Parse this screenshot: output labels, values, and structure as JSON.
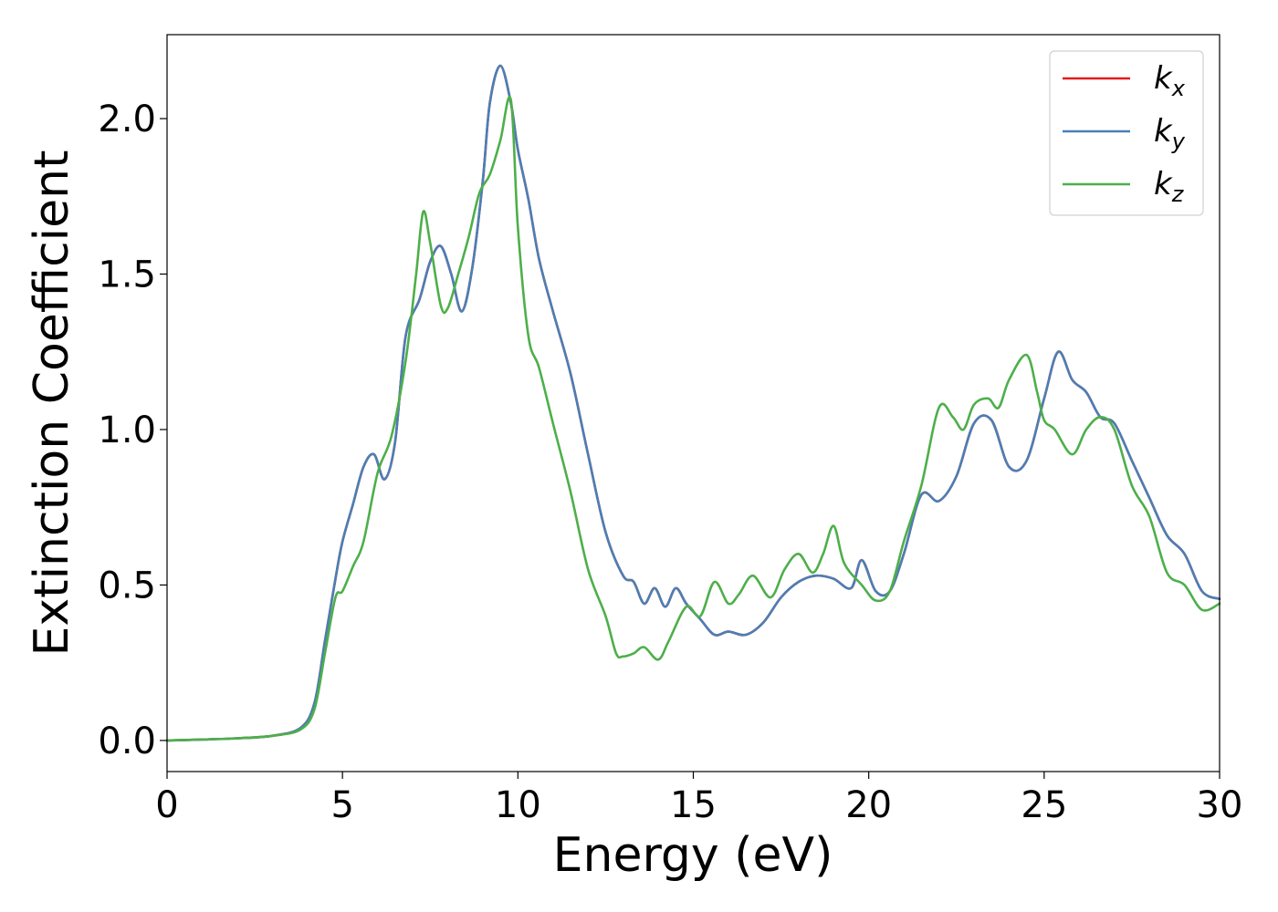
{
  "chart_data": {
    "type": "line",
    "title": "",
    "xlabel": "Energy (eV)",
    "ylabel": "Extinction Coefficient",
    "xlim": [
      0,
      30
    ],
    "ylim": [
      -0.1,
      2.27
    ],
    "xticks": [
      0,
      5,
      10,
      15,
      20,
      25,
      30
    ],
    "xtick_labels": [
      "0",
      "5",
      "10",
      "15",
      "20",
      "25",
      "30"
    ],
    "yticks": [
      0.0,
      0.5,
      1.0,
      1.5,
      2.0
    ],
    "ytick_labels": [
      "0.0",
      "0.5",
      "1.0",
      "1.5",
      "2.0"
    ],
    "grid": false,
    "legend_position": "top-right",
    "series": [
      {
        "name": "k_x",
        "legend_base": "k",
        "legend_sub": "x",
        "color": "#e41a1c",
        "x": [
          0,
          1,
          2,
          3,
          3.8,
          4.2,
          4.5,
          4.8,
          5,
          5.3,
          5.6,
          5.9,
          6.2,
          6.5,
          6.8,
          7.2,
          7.5,
          7.8,
          8.1,
          8.4,
          8.7,
          9,
          9.2,
          9.5,
          9.8,
          10,
          10.3,
          10.6,
          11,
          11.5,
          12,
          12.5,
          13,
          13.3,
          13.6,
          13.9,
          14.2,
          14.5,
          14.8,
          15.2,
          15.6,
          16,
          16.5,
          17,
          17.5,
          18,
          18.5,
          19,
          19.5,
          19.8,
          20.2,
          20.6,
          21,
          21.5,
          22,
          22.5,
          23,
          23.5,
          24,
          24.5,
          25,
          25.4,
          25.8,
          26.2,
          26.6,
          27,
          27.5,
          28,
          28.5,
          29,
          29.5,
          30
        ],
        "values": [
          0,
          0.003,
          0.007,
          0.015,
          0.04,
          0.12,
          0.32,
          0.52,
          0.64,
          0.76,
          0.88,
          0.92,
          0.84,
          0.96,
          1.3,
          1.42,
          1.54,
          1.59,
          1.5,
          1.38,
          1.52,
          1.8,
          2.05,
          2.17,
          2.05,
          1.9,
          1.74,
          1.55,
          1.38,
          1.18,
          0.92,
          0.67,
          0.53,
          0.51,
          0.44,
          0.49,
          0.43,
          0.49,
          0.44,
          0.39,
          0.34,
          0.35,
          0.34,
          0.38,
          0.46,
          0.51,
          0.53,
          0.52,
          0.49,
          0.58,
          0.48,
          0.48,
          0.6,
          0.79,
          0.77,
          0.85,
          1.02,
          1.03,
          0.88,
          0.9,
          1.1,
          1.25,
          1.16,
          1.12,
          1.04,
          1.02,
          0.9,
          0.78,
          0.66,
          0.6,
          0.48,
          0.455
        ]
      },
      {
        "name": "k_y",
        "legend_base": "k",
        "legend_sub": "y",
        "color": "#4a7fb5",
        "x": [
          0,
          1,
          2,
          3,
          3.8,
          4.2,
          4.5,
          4.8,
          5,
          5.3,
          5.6,
          5.9,
          6.2,
          6.5,
          6.8,
          7.2,
          7.5,
          7.8,
          8.1,
          8.4,
          8.7,
          9,
          9.2,
          9.5,
          9.8,
          10,
          10.3,
          10.6,
          11,
          11.5,
          12,
          12.5,
          13,
          13.3,
          13.6,
          13.9,
          14.2,
          14.5,
          14.8,
          15.2,
          15.6,
          16,
          16.5,
          17,
          17.5,
          18,
          18.5,
          19,
          19.5,
          19.8,
          20.2,
          20.6,
          21,
          21.5,
          22,
          22.5,
          23,
          23.5,
          24,
          24.5,
          25,
          25.4,
          25.8,
          26.2,
          26.6,
          27,
          27.5,
          28,
          28.5,
          29,
          29.5,
          30
        ],
        "values": [
          0,
          0.003,
          0.007,
          0.015,
          0.04,
          0.12,
          0.32,
          0.52,
          0.64,
          0.76,
          0.88,
          0.92,
          0.84,
          0.96,
          1.3,
          1.42,
          1.54,
          1.59,
          1.5,
          1.38,
          1.52,
          1.8,
          2.05,
          2.17,
          2.05,
          1.9,
          1.74,
          1.55,
          1.38,
          1.18,
          0.92,
          0.67,
          0.53,
          0.51,
          0.44,
          0.49,
          0.43,
          0.49,
          0.44,
          0.39,
          0.34,
          0.35,
          0.34,
          0.38,
          0.46,
          0.51,
          0.53,
          0.52,
          0.49,
          0.58,
          0.48,
          0.48,
          0.6,
          0.79,
          0.77,
          0.85,
          1.02,
          1.03,
          0.88,
          0.9,
          1.1,
          1.25,
          1.16,
          1.12,
          1.04,
          1.02,
          0.9,
          0.78,
          0.66,
          0.6,
          0.48,
          0.455
        ]
      },
      {
        "name": "k_z",
        "legend_base": "k",
        "legend_sub": "z",
        "color": "#4daf4a",
        "x": [
          0,
          1,
          2,
          3,
          3.8,
          4.2,
          4.5,
          4.8,
          5,
          5.3,
          5.6,
          6,
          6.4,
          6.8,
          7.1,
          7.3,
          7.5,
          7.8,
          8,
          8.3,
          8.6,
          8.9,
          9.2,
          9.5,
          9.8,
          10,
          10.3,
          10.6,
          11,
          11.5,
          12,
          12.5,
          12.8,
          13,
          13.3,
          13.6,
          14,
          14.3,
          14.8,
          15.2,
          15.6,
          16,
          16.3,
          16.7,
          17.2,
          17.6,
          18,
          18.4,
          18.7,
          19,
          19.3,
          19.8,
          20.2,
          20.6,
          21,
          21.5,
          22,
          22.4,
          22.7,
          23,
          23.4,
          23.7,
          24,
          24.5,
          24.8,
          25,
          25.3,
          25.8,
          26.2,
          26.6,
          27,
          27.5,
          28,
          28.5,
          29,
          29.5,
          30
        ],
        "values": [
          0,
          0.003,
          0.007,
          0.015,
          0.035,
          0.1,
          0.28,
          0.46,
          0.48,
          0.56,
          0.64,
          0.86,
          0.98,
          1.22,
          1.5,
          1.7,
          1.6,
          1.4,
          1.39,
          1.5,
          1.62,
          1.76,
          1.82,
          1.93,
          2.06,
          1.65,
          1.3,
          1.2,
          1.02,
          0.8,
          0.55,
          0.4,
          0.28,
          0.27,
          0.28,
          0.3,
          0.26,
          0.32,
          0.43,
          0.4,
          0.51,
          0.44,
          0.47,
          0.53,
          0.46,
          0.55,
          0.6,
          0.54,
          0.6,
          0.69,
          0.57,
          0.5,
          0.45,
          0.48,
          0.64,
          0.82,
          1.07,
          1.04,
          1.0,
          1.08,
          1.1,
          1.07,
          1.16,
          1.24,
          1.12,
          1.03,
          1.0,
          0.92,
          1.0,
          1.04,
          1.0,
          0.82,
          0.72,
          0.54,
          0.5,
          0.42,
          0.44
        ]
      }
    ]
  }
}
